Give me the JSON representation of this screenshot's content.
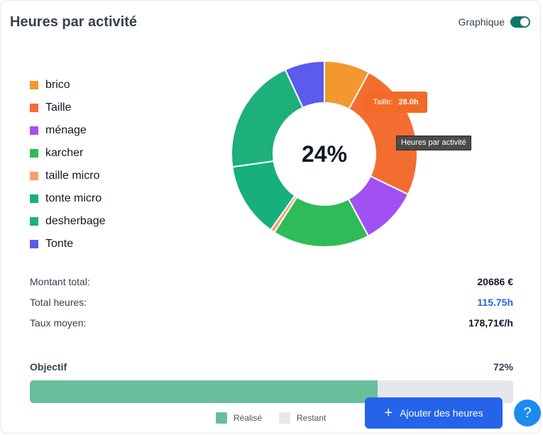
{
  "header": {
    "title": "Heures par activité",
    "toggle_label": "Graphique",
    "toggle_on": true
  },
  "chart_data": {
    "type": "pie",
    "categories": [
      "brico",
      "Taille",
      "ménage",
      "karcher",
      "taille micro",
      "tonte micro",
      "desherbage",
      "Tonte"
    ],
    "colors": [
      "#f2982e",
      "#f36d31",
      "#a151f1",
      "#2fbb58",
      "#f9a071",
      "#17b07a",
      "#1db07a",
      "#5a5cec"
    ],
    "series": [
      {
        "values": [
          9.2,
          28.0,
          11.6,
          19.5,
          0.9,
          15.0,
          23.5,
          8.0
        ]
      }
    ],
    "center_label": "24%",
    "tooltip": {
      "label": "Taille:",
      "value": "28.0h"
    },
    "hover_hint": "Heures par activité"
  },
  "stats": [
    {
      "label": "Montant total:",
      "value": "20686 €",
      "color": "#111827"
    },
    {
      "label": "Total heures:",
      "value": "115.75h",
      "color": "#2563eb"
    },
    {
      "label": "Taux moyen:",
      "value": "178,71€/h",
      "color": "#111827"
    }
  ],
  "objective": {
    "label": "Objectif",
    "percent_text": "72%",
    "progress": 0.72,
    "legend": [
      {
        "label": "Réalisé",
        "color": "#69bf9b"
      },
      {
        "label": "Restant",
        "color": "#e5e7eb"
      }
    ]
  },
  "actions": {
    "add_label": "Ajouter des heures",
    "add_icon": "plus-icon",
    "help_icon": "question-icon",
    "help_glyph": "?"
  }
}
